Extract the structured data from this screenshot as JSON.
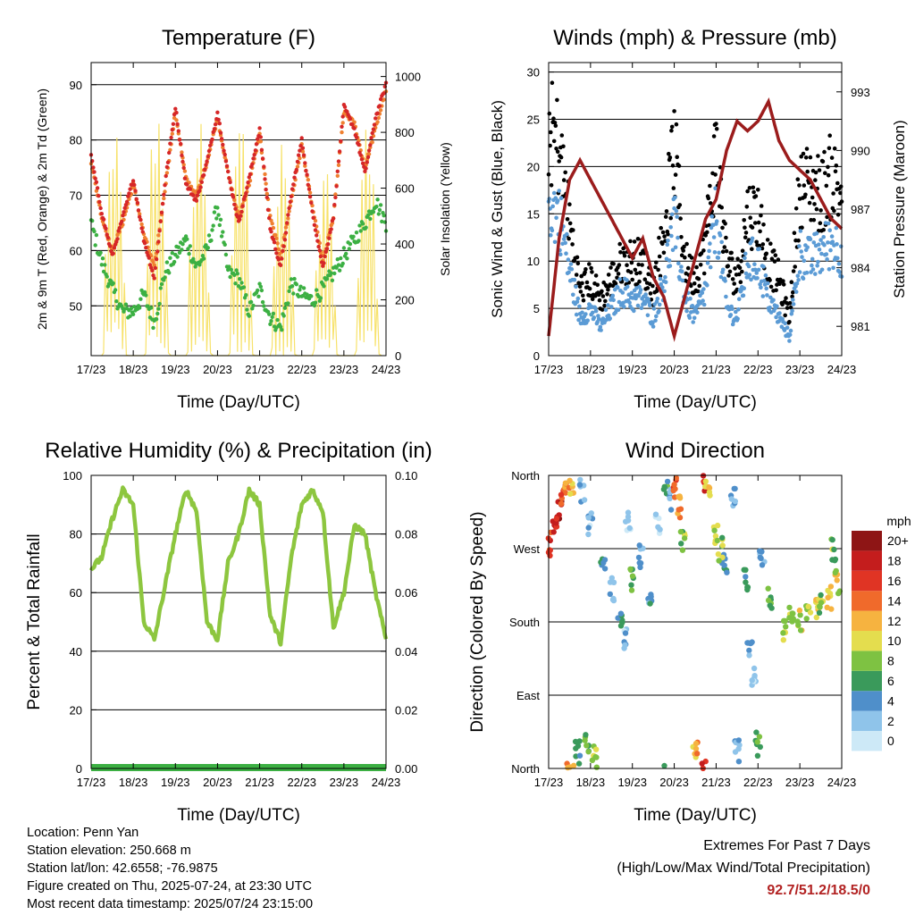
{
  "x_ticks": [
    "17/23",
    "18/23",
    "19/23",
    "20/23",
    "21/23",
    "22/23",
    "23/23",
    "24/23"
  ],
  "x_label": "Time (Day/UTC)",
  "colors": {
    "temp_2m": "#d62728",
    "temp_9m": "#f08030",
    "dewpoint": "#3cb043",
    "solar": "#f7e26b",
    "wind": "#5b9bd5",
    "gust": "#000000",
    "pressure": "#9b1c1c",
    "rh": "#8dc63f",
    "precip": "#3cb043",
    "extremes": "#b22222"
  },
  "panels": {
    "temperature": {
      "title": "Temperature (F)",
      "ylabel": "2m & 9m T (Red, Orange) & 2m Td (Green)",
      "y2label": "Solar Insolation (Yellow)",
      "y_ticks": [
        "50",
        "60",
        "70",
        "80",
        "90"
      ],
      "y2_ticks": [
        "0",
        "200",
        "400",
        "600",
        "800",
        "1000"
      ]
    },
    "winds": {
      "title": "Winds (mph) & Pressure (mb)",
      "ylabel": "Sonic Wind & Gust (Blue, Black)",
      "y2label": "Station Pressure (Maroon)",
      "y_ticks": [
        "0",
        "5",
        "10",
        "15",
        "20",
        "25",
        "30"
      ],
      "y2_ticks": [
        "981",
        "984",
        "987",
        "990",
        "993"
      ]
    },
    "humidity": {
      "title": "Relative Humidity (%) & Precipitation (in)",
      "ylabel": "Percent & Total Rainfall",
      "y_ticks": [
        "0",
        "20",
        "40",
        "60",
        "80",
        "100"
      ],
      "y2_ticks": [
        "0.00",
        "0.02",
        "0.04",
        "0.06",
        "0.08",
        "0.10"
      ]
    },
    "direction": {
      "title": "Wind Direction",
      "ylabel": "Direction (Colored By Speed)",
      "y_ticks": [
        "North",
        "East",
        "South",
        "West",
        "North"
      ],
      "legend_title": "mph",
      "legend_labels": [
        "0",
        "2",
        "4",
        "6",
        "8",
        "10",
        "12",
        "14",
        "16",
        "18",
        "20+"
      ],
      "legend_colors": [
        "#cde9f7",
        "#8fc4ea",
        "#4f8fca",
        "#3a9a5b",
        "#7ec242",
        "#e4dd4e",
        "#f6b340",
        "#f06a2b",
        "#e03424",
        "#c41d1d",
        "#8e1515"
      ]
    }
  },
  "chart_data": [
    {
      "type": "line",
      "title": "Temperature (F)",
      "xlabel": "Time (Day/UTC)",
      "ylabel": "2m & 9m T (Red, Orange) & 2m Td (Green)",
      "y2label": "Solar Insolation (Yellow)",
      "xlim": [
        0,
        7
      ],
      "ylim": [
        41,
        94
      ],
      "y2lim": [
        0,
        1050
      ],
      "x": [
        0,
        0.25,
        0.5,
        0.75,
        1,
        1.25,
        1.5,
        1.75,
        2,
        2.25,
        2.5,
        2.75,
        3,
        3.25,
        3.5,
        3.75,
        4,
        4.25,
        4.5,
        4.75,
        5,
        5.25,
        5.5,
        5.75,
        6,
        6.25,
        6.5,
        6.75,
        7
      ],
      "series": [
        {
          "name": "2m T",
          "axis": "y",
          "values": [
            77,
            67,
            59,
            66,
            73,
            62,
            55,
            72,
            86,
            72,
            69,
            76,
            85,
            74,
            65,
            73,
            82,
            64,
            57,
            70,
            80,
            67,
            57,
            66,
            86,
            82,
            74,
            84,
            90
          ]
        },
        {
          "name": "9m T",
          "axis": "y",
          "values": [
            76,
            66,
            60,
            65,
            72,
            63,
            57,
            71,
            85,
            73,
            70,
            76,
            84,
            74,
            66,
            72,
            81,
            66,
            59,
            69,
            79,
            68,
            58,
            66,
            85,
            83,
            75,
            82,
            89
          ]
        },
        {
          "name": "2m Td",
          "axis": "y",
          "values": [
            65,
            58,
            53,
            49,
            49,
            52,
            47,
            56,
            59,
            62,
            57,
            60,
            68,
            56,
            55,
            49,
            53,
            48,
            46,
            54,
            52,
            51,
            53,
            56,
            59,
            62,
            65,
            69,
            65
          ]
        },
        {
          "name": "Solar Insolation",
          "axis": "y2",
          "peaks_x": [
            0.55,
            1.55,
            2.55,
            3.55,
            4.55,
            5.55,
            6.55
          ],
          "peaks": [
            900,
            950,
            880,
            920,
            850,
            760,
            870
          ]
        }
      ]
    },
    {
      "type": "scatter",
      "title": "Winds (mph) & Pressure (mb)",
      "xlabel": "Time (Day/UTC)",
      "ylabel": "Sonic Wind & Gust (Blue, Black)",
      "y2label": "Station Pressure (Maroon)",
      "xlim": [
        0,
        7
      ],
      "ylim": [
        0,
        31
      ],
      "y2lim": [
        979.5,
        994.5
      ],
      "x": [
        0,
        0.25,
        0.5,
        0.75,
        1,
        1.25,
        1.5,
        1.75,
        2,
        2.25,
        2.5,
        2.75,
        3,
        3.25,
        3.5,
        3.75,
        4,
        4.25,
        4.5,
        4.75,
        5,
        5.25,
        5.5,
        5.75,
        6,
        6.25,
        6.5,
        6.75,
        7
      ],
      "series": [
        {
          "name": "Sonic Wind",
          "axis": "y",
          "values": [
            16,
            15,
            9,
            4,
            5,
            3,
            5,
            7,
            6,
            6,
            4,
            8,
            14,
            6,
            4,
            7,
            15,
            5,
            4,
            10,
            10,
            6,
            4,
            2,
            11,
            10,
            11,
            12,
            11
          ]
        },
        {
          "name": "Gust",
          "axis": "y",
          "values": [
            24,
            22,
            14,
            7,
            8,
            6,
            8,
            10,
            10,
            10,
            7,
            13,
            22,
            10,
            8,
            12,
            22,
            10,
            8,
            15,
            15,
            10,
            8,
            4,
            18,
            18,
            17,
            19,
            17
          ]
        },
        {
          "name": "Station Pressure",
          "axis": "y2",
          "values": [
            980.5,
            985.5,
            988.5,
            989.5,
            988.5,
            987.5,
            986.5,
            985.5,
            984.5,
            985.5,
            983.5,
            982.5,
            980.5,
            982.5,
            984.5,
            986.5,
            987.5,
            990,
            991.5,
            991,
            991.5,
            992.5,
            990.5,
            989.5,
            989,
            988.5,
            987.5,
            986.5,
            986
          ]
        }
      ]
    },
    {
      "type": "line",
      "title": "Relative Humidity (%) & Precipitation (in)",
      "xlabel": "Time (Day/UTC)",
      "ylabel": "Percent & Total Rainfall",
      "xlim": [
        0,
        7
      ],
      "ylim": [
        0,
        100
      ],
      "y2lim": [
        0,
        0.1
      ],
      "x": [
        0,
        0.25,
        0.5,
        0.75,
        1,
        1.25,
        1.5,
        1.75,
        2,
        2.25,
        2.5,
        2.75,
        3,
        3.25,
        3.5,
        3.75,
        4,
        4.25,
        4.5,
        4.75,
        5,
        5.25,
        5.5,
        5.75,
        6,
        6.25,
        6.5,
        6.75,
        7
      ],
      "series": [
        {
          "name": "Relative Humidity",
          "axis": "y",
          "values": [
            68,
            72,
            85,
            95,
            90,
            50,
            44,
            62,
            80,
            95,
            88,
            50,
            44,
            70,
            80,
            95,
            90,
            52,
            43,
            72,
            90,
            95,
            88,
            48,
            60,
            83,
            80,
            60,
            44
          ]
        },
        {
          "name": "Total Precipitation",
          "axis": "y2",
          "values": [
            0,
            0,
            0,
            0,
            0,
            0,
            0,
            0,
            0,
            0,
            0,
            0,
            0,
            0,
            0,
            0,
            0,
            0,
            0,
            0,
            0,
            0,
            0,
            0,
            0,
            0,
            0,
            0,
            0
          ]
        }
      ]
    },
    {
      "type": "scatter",
      "title": "Wind Direction",
      "xlabel": "Time (Day/UTC)",
      "ylabel": "Direction (Colored By Speed)",
      "xlim": [
        0,
        7
      ],
      "ylim": [
        0,
        360
      ],
      "series": [
        {
          "name": "Direction",
          "points": [
            [
              0.05,
              275,
              17
            ],
            [
              0.15,
              300,
              18
            ],
            [
              0.25,
              320,
              19
            ],
            [
              0.35,
              340,
              16
            ],
            [
              0.45,
              355,
              14
            ],
            [
              0.55,
              350,
              12
            ],
            [
              0.7,
              20,
              6
            ],
            [
              0.9,
              30,
              8
            ],
            [
              1.1,
              15,
              10
            ],
            [
              0.8,
              340,
              4
            ],
            [
              1.0,
              300,
              3
            ],
            [
              1.3,
              250,
              5
            ],
            [
              1.5,
              220,
              4
            ],
            [
              1.7,
              190,
              6
            ],
            [
              1.8,
              160,
              3
            ],
            [
              2.0,
              230,
              8
            ],
            [
              2.2,
              260,
              4
            ],
            [
              1.9,
              300,
              2
            ],
            [
              2.4,
              200,
              5
            ],
            [
              2.6,
              300,
              3
            ],
            [
              2.8,
              350,
              7
            ],
            [
              2.9,
              330,
              4
            ],
            [
              3.0,
              345,
              16
            ],
            [
              3.1,
              320,
              14
            ],
            [
              3.2,
              280,
              9
            ],
            [
              3.5,
              25,
              13
            ],
            [
              3.7,
              355,
              18
            ],
            [
              3.8,
              340,
              12
            ],
            [
              4.0,
              290,
              10
            ],
            [
              4.2,
              250,
              6
            ],
            [
              4.1,
              270,
              9
            ],
            [
              4.4,
              330,
              5
            ],
            [
              4.5,
              20,
              4
            ],
            [
              4.7,
              230,
              6
            ],
            [
              4.8,
              150,
              4
            ],
            [
              4.9,
              110,
              3
            ],
            [
              5.0,
              30,
              8
            ],
            [
              5.1,
              260,
              5
            ],
            [
              5.3,
              210,
              8
            ],
            [
              5.6,
              170,
              10
            ],
            [
              5.8,
              190,
              9
            ],
            [
              6.0,
              180,
              11
            ],
            [
              6.2,
              190,
              10
            ],
            [
              6.4,
              200,
              12
            ],
            [
              6.5,
              200,
              9
            ],
            [
              6.7,
              210,
              12
            ],
            [
              6.9,
              230,
              11
            ],
            [
              6.8,
              270,
              9
            ]
          ]
        }
      ]
    }
  ],
  "info": {
    "location": "Location: Penn Yan",
    "elevation": "Station elevation: 250.668 m",
    "latlon": "Station lat/lon: 42.6558; -76.9875",
    "created": "Figure created on Thu, 2025-07-24, at 23:30 UTC",
    "recent": "Most recent data timestamp: 2025/07/24 23:15:00",
    "extremes_title": "Extremes For Past 7 Days",
    "extremes_subtitle": "(High/Low/Max Wind/Total Precipitation)",
    "extremes_value": "92.7/51.2/18.5/0"
  }
}
